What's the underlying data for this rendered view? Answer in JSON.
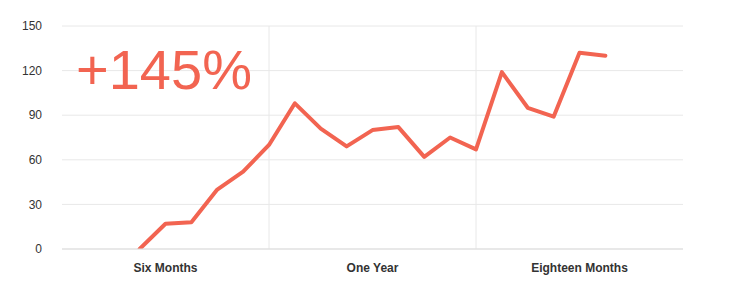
{
  "chart_data": {
    "type": "line",
    "annotation": "+145%",
    "categories": [
      null,
      null,
      null,
      null,
      "Six Months",
      null,
      null,
      null,
      null,
      null,
      null,
      null,
      "One Year",
      null,
      null,
      null,
      null,
      null,
      null,
      null,
      "Eighteen Months",
      null,
      null,
      null,
      null
    ],
    "values": [
      null,
      null,
      null,
      0,
      17,
      18,
      40,
      52,
      70,
      98,
      81,
      69,
      80,
      82,
      62,
      75,
      67,
      119,
      95,
      89,
      132,
      130,
      null,
      null,
      null
    ],
    "color": "#f26451",
    "ylim": [
      0,
      150
    ],
    "yticks": [
      0,
      30,
      60,
      90,
      120,
      150
    ],
    "grid": true
  }
}
